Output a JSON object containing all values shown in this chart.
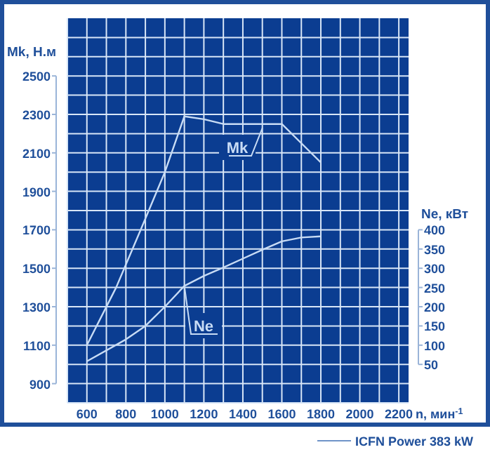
{
  "chart_data": {
    "type": "line",
    "xlabel": "n, мин$^{-1}$",
    "ylabel": "Mk, Н.м",
    "y2label": "Ne, кВт",
    "xlim": [
      500,
      2250
    ],
    "xticks": [
      {
        "value": 500,
        "label": null
      },
      600,
      {
        "value": 700,
        "label": null
      },
      800,
      {
        "value": 900,
        "label": null
      },
      1000,
      {
        "value": 1100,
        "label": null
      },
      1200,
      {
        "value": 1300,
        "label": null
      },
      1400,
      {
        "value": 1500,
        "label": null
      },
      1600,
      {
        "value": 1700,
        "label": null
      },
      1800,
      {
        "value": 1900,
        "label": null
      },
      2000,
      {
        "value": 2100,
        "label": null
      },
      2200
    ],
    "ylim": [
      800,
      2800
    ],
    "yticks": [
      {
        "value": 800,
        "label": null
      },
      900,
      {
        "value": 1000,
        "label": null
      },
      1100,
      {
        "value": 1200,
        "label": null
      },
      1300,
      {
        "value": 1400,
        "label": null
      },
      1500,
      {
        "value": 1600,
        "label": null
      },
      1700,
      {
        "value": 1800,
        "label": null
      },
      1900,
      {
        "value": 2000,
        "label": null
      },
      2100,
      {
        "value": 2200,
        "label": null
      },
      2300,
      {
        "value": 2400,
        "label": null
      },
      2500,
      {
        "value": 2600,
        "label": null
      },
      {
        "value": 2700,
        "label": null
      }
    ],
    "y2lim": [
      -50,
      950
    ],
    "y2ticks": [
      50,
      100,
      150,
      200,
      250,
      300,
      350,
      400
    ],
    "grid": true,
    "marker": "none",
    "line_style": "solid",
    "annotations": [
      "ICFN Power 383 kW"
    ],
    "series": [
      {
        "name": "Mk",
        "color": "#c8dcf5",
        "x": [
          600,
          750,
          880,
          1000,
          1100,
          1200,
          1300,
          1600,
          1800
        ],
        "values": [
          1100,
          1400,
          1710,
          2000,
          2290,
          2275,
          2250,
          2250,
          2050
        ]
      },
      {
        "name": "Ne",
        "color": "#c8dcf5",
        "axis": "y2",
        "x": [
          600,
          800,
          900,
          1000,
          1100,
          1200,
          1300,
          1400,
          1500,
          1600,
          1700,
          1800
        ],
        "values": [
          58,
          115,
          150,
          200,
          254,
          280,
          302,
          325,
          348,
          370,
          380,
          383
        ]
      }
    ]
  }
}
